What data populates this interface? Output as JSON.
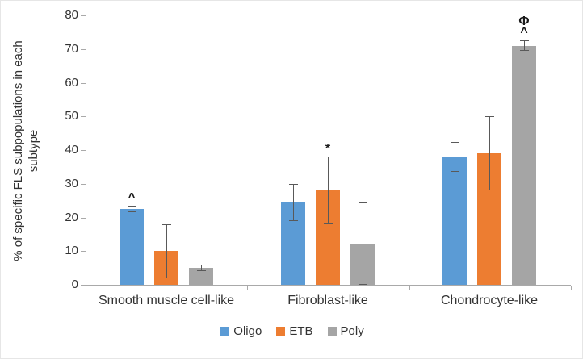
{
  "chart_data": {
    "type": "bar",
    "title": "",
    "xlabel": "",
    "ylabel": "% of specific FLS subpopulations in each subtype",
    "ylim": [
      0,
      80
    ],
    "yticks": [
      0,
      10,
      20,
      30,
      40,
      50,
      60,
      70,
      80
    ],
    "grid": false,
    "legend_position": "bottom",
    "categories": [
      "Smooth muscle cell-like",
      "Fibroblast-like",
      "Chondrocyte-like"
    ],
    "series": [
      {
        "name": "Oligo",
        "color": "#5B9BD5",
        "values": [
          22.5,
          24.5,
          38
        ],
        "errors": [
          1,
          5.5,
          4.5
        ]
      },
      {
        "name": "ETB",
        "color": "#ED7D31",
        "values": [
          10,
          28,
          39
        ],
        "errors": [
          8,
          10,
          11
        ]
      },
      {
        "name": "Poly",
        "color": "#A5A5A5",
        "values": [
          5,
          12,
          71
        ],
        "errors": [
          1,
          12.5,
          1.5
        ]
      }
    ],
    "annotations": [
      {
        "category": 0,
        "series": 0,
        "text": "^"
      },
      {
        "category": 1,
        "series": 1,
        "text": "*"
      },
      {
        "category": 2,
        "series": 2,
        "text": "Φ\n^"
      }
    ]
  }
}
